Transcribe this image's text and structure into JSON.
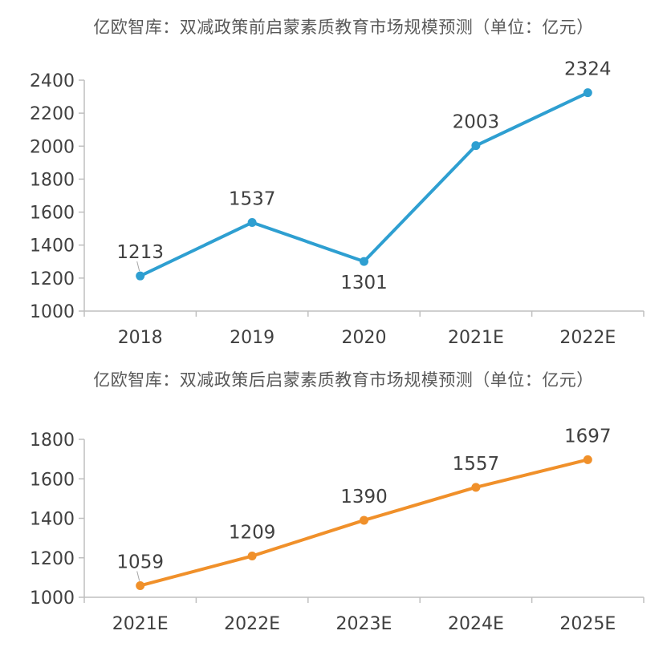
{
  "chart_data": [
    {
      "type": "line",
      "title": "亿欧智库：双减政策前启蒙素质教育市场规模预测（单位：亿元）",
      "categories": [
        "2018",
        "2019",
        "2020",
        "2021E",
        "2022E"
      ],
      "series": [
        {
          "name": "市场规模",
          "values": [
            1213,
            1537,
            1301,
            2003,
            2324
          ]
        }
      ],
      "yticks": [
        1000,
        1200,
        1400,
        1600,
        1800,
        2000,
        2200,
        2400
      ],
      "ylim": [
        1000,
        2400
      ],
      "xlabel": "",
      "ylabel": "",
      "color": "#2e9fd1",
      "label_positions": [
        "above",
        "above",
        "below",
        "above",
        "above"
      ],
      "legend": "none",
      "grid": false
    },
    {
      "type": "line",
      "title": "亿欧智库：双减政策后启蒙素质教育市场规模预测（单位：亿元）",
      "categories": [
        "2021E",
        "2022E",
        "2023E",
        "2024E",
        "2025E"
      ],
      "series": [
        {
          "name": "市场规模",
          "values": [
            1059,
            1209,
            1390,
            1557,
            1697
          ]
        }
      ],
      "yticks": [
        1000,
        1200,
        1400,
        1600,
        1800
      ],
      "ylim": [
        1000,
        1800
      ],
      "xlabel": "",
      "ylabel": "",
      "color": "#f0902a",
      "label_positions": [
        "above",
        "above",
        "above",
        "above",
        "above"
      ],
      "legend": "none",
      "grid": false
    }
  ]
}
